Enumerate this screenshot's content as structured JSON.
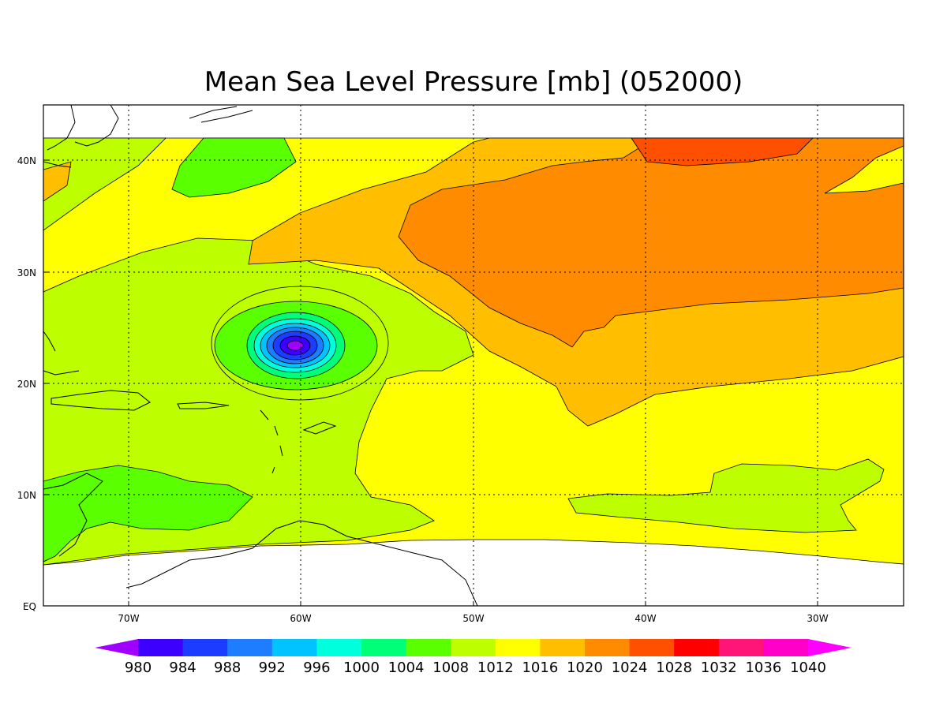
{
  "title": "Mean Sea Level Pressure [mb] (052000)",
  "map": {
    "lon_range": [
      -75,
      -25
    ],
    "lat_range": [
      0,
      45
    ],
    "data_lat_range": [
      5,
      42
    ],
    "x_ticks": [
      "70W",
      "60W",
      "50W",
      "40W",
      "30W"
    ],
    "y_ticks": [
      "EQ",
      "10N",
      "20N",
      "30N",
      "40N"
    ],
    "grid": "dotted",
    "low_pressure_center": {
      "lon": -60.3,
      "lat": 23.1
    }
  },
  "colorbar": {
    "labels": [
      "980",
      "984",
      "988",
      "992",
      "996",
      "1000",
      "1004",
      "1008",
      "1012",
      "1016",
      "1020",
      "1024",
      "1028",
      "1032",
      "1036",
      "1040"
    ],
    "colors": [
      "#9f00ff",
      "#3c00ff",
      "#1c3cff",
      "#1e7dff",
      "#00c3ff",
      "#00ffdc",
      "#00ff78",
      "#5aff00",
      "#beff00",
      "#ffff00",
      "#ffbe00",
      "#ff8c00",
      "#ff5000",
      "#ff0000",
      "#ff1478",
      "#ff00c8",
      "#ff00ff"
    ]
  }
}
